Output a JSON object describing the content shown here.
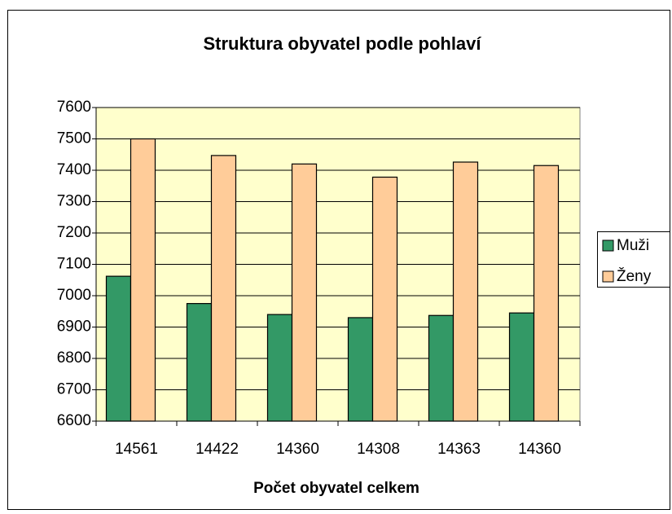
{
  "chart_data": {
    "type": "bar",
    "title": "Struktura obyvatel podle pohlaví",
    "x_label": "Počet obyvatel celkem",
    "categories": [
      "14561",
      "14422",
      "14360",
      "14308",
      "14363",
      "14360"
    ],
    "series": [
      {
        "name": "Muži",
        "color": "#339966",
        "values": [
          7062,
          6975,
          6940,
          6930,
          6937,
          6945
        ]
      },
      {
        "name": "Ženy",
        "color": "#ffcc99",
        "values": [
          7500,
          7447,
          7420,
          7378,
          7426,
          7415
        ]
      }
    ],
    "ylim": [
      6600,
      7600
    ],
    "yticks": [
      6600,
      6700,
      6800,
      6900,
      7000,
      7100,
      7200,
      7300,
      7400,
      7500,
      7600
    ],
    "grid": true,
    "plot_background": "#ffffcc",
    "legend": "right"
  }
}
